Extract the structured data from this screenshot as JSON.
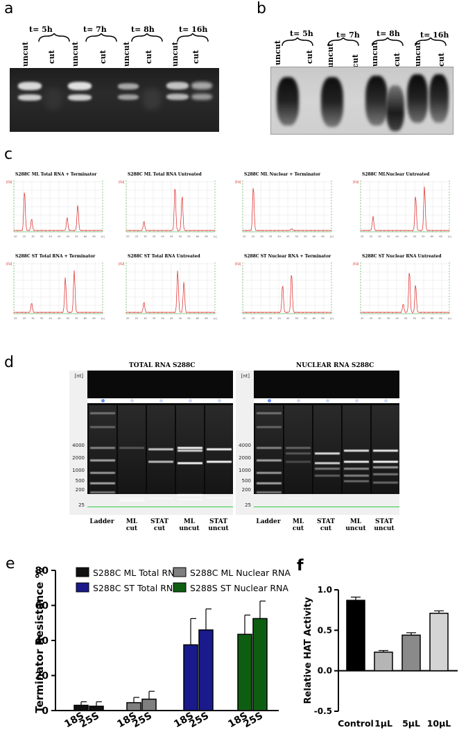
{
  "panels": {
    "a": {
      "label": "a",
      "timepoints": [
        "t= 5h",
        "t= 7h",
        "t= 8h",
        "t= 16h"
      ],
      "uncut_label": "uncut",
      "cut_label": "cut"
    },
    "b": {
      "label": "b",
      "timepoints": [
        "t= 5h",
        "t= 7h",
        "t= 8h",
        "t= 16h"
      ],
      "uncut_label": "uncut",
      "cut_label": "cut"
    },
    "c": {
      "label": "c",
      "plots": [
        "S288C ML Total RNA + Terminator",
        "S288C ML Total RNA Untreated",
        "S288C ML Nuclear + Terminator",
        "S288C MLNuclear Untreated",
        "S288C ST Total RNA + Terminator",
        "S288C ST Total RNA Untreated",
        "S288C ST Nuclear RNA + Terminator",
        "S288C ST Nuclear RNA Untreated"
      ],
      "y_unit": "[FU]",
      "x_ticks": [
        "20",
        "25",
        "30",
        "35",
        "40",
        "45",
        "50",
        "55",
        "60",
        "65",
        "[s]"
      ]
    },
    "d": {
      "label": "d",
      "gels": [
        {
          "title": "TOTAL RNA S288C",
          "unit": "[nt]",
          "markers": [
            "4000",
            "2000",
            "1000",
            "500",
            "200",
            "25"
          ],
          "lanes": [
            "Ladder",
            "ML cut",
            "STAT cut",
            "ML uncut",
            "STAT uncut"
          ]
        },
        {
          "title": "NUCLEAR RNA S288C",
          "unit": "[nt]",
          "markers": [
            "4000",
            "2000",
            "1000",
            "500",
            "200",
            "25"
          ],
          "lanes": [
            "Ladder",
            "ML cut",
            "STAT cut",
            "ML uncut",
            "STAT uncut"
          ]
        }
      ]
    },
    "e": {
      "label": "e"
    },
    "f": {
      "label": "f"
    }
  },
  "chart_data": [
    {
      "type": "bar",
      "title": "",
      "xlabel": "",
      "ylabel": "Terminator Resistance %",
      "ylim": [
        0,
        80
      ],
      "yticks": [
        "0",
        "20",
        "40",
        "60",
        "80"
      ],
      "categories": [
        "18S",
        "25S"
      ],
      "series": [
        {
          "name": "S288C ML Total RNA",
          "color": "#111111",
          "values": [
            3,
            2.5
          ],
          "errors": [
            2,
            2.5
          ]
        },
        {
          "name": "S288C ML Nuclear RNA",
          "color": "#7f7f7f",
          "values": [
            4.5,
            6.5
          ],
          "errors": [
            3,
            4.5
          ]
        },
        {
          "name": "S288C ST Total RNA",
          "color": "#1a1a8c",
          "values": [
            37.5,
            46
          ],
          "errors": [
            15,
            12
          ]
        },
        {
          "name": "S288S ST Nuclear RNA",
          "color": "#0e5e12",
          "values": [
            43.5,
            52.5
          ],
          "errors": [
            11,
            10
          ]
        }
      ],
      "legend": "top"
    },
    {
      "type": "bar",
      "title": "",
      "xlabel": "",
      "ylabel": "Relative HAT Activity",
      "ylim": [
        -0.5,
        1.0
      ],
      "yticks": [
        "1.0",
        "0.5",
        "0.0",
        "-0.5"
      ],
      "categories": [
        "Control",
        "1µL",
        "5µL",
        "10µL"
      ],
      "values": [
        0.87,
        0.23,
        0.44,
        0.71
      ],
      "errors": [
        0.04,
        0.02,
        0.03,
        0.03
      ],
      "colors": [
        "#000000",
        "#b5b5b5",
        "#8a8a8a",
        "#d4d4d4"
      ]
    }
  ]
}
